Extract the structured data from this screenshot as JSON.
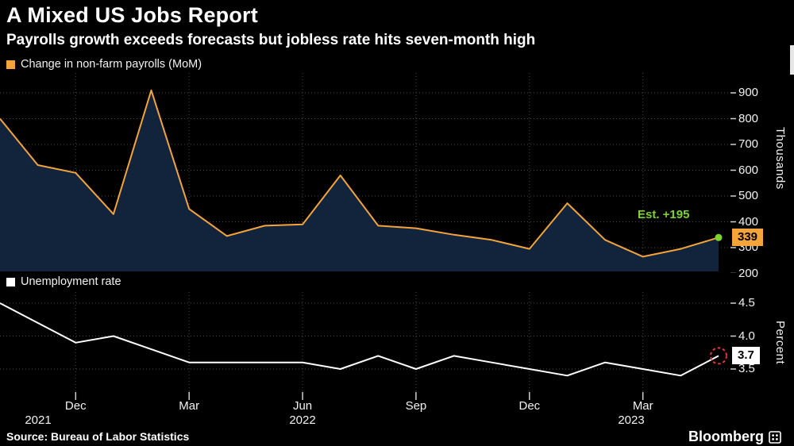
{
  "header": {
    "title": "A Mixed US Jobs Report",
    "subtitle": "Payrolls growth exceeds forecasts but jobless rate hits seven-month high"
  },
  "colors": {
    "background": "#000000",
    "accent_orange": "#f3a43b",
    "area_fill": "#12243c",
    "est_green": "#7dd32f",
    "alert_red": "#e13a42",
    "grid_gray": "#4a4a4a",
    "tick_gray": "#cfcfcf",
    "line_white": "#ffffff"
  },
  "chart_data": [
    {
      "type": "area",
      "name": "payrolls",
      "title": "Change in non-farm payrolls (MoM)",
      "unit_label": "Thousands",
      "legend_position": "top-left",
      "grid": true,
      "x": [
        "Oct 2021",
        "Nov 2021",
        "Dec 2021",
        "Jan 2022",
        "Feb 2022",
        "Mar 2022",
        "Apr 2022",
        "May 2022",
        "Jun 2022",
        "Jul 2022",
        "Aug 2022",
        "Sep 2022",
        "Oct 2022",
        "Nov 2022",
        "Dec 2022",
        "Jan 2023",
        "Feb 2023",
        "Mar 2023",
        "Apr 2023",
        "May 2023"
      ],
      "values": [
        800,
        620,
        590,
        430,
        910,
        450,
        345,
        385,
        390,
        580,
        385,
        375,
        350,
        330,
        295,
        472,
        330,
        265,
        295,
        339
      ],
      "yticks": [
        200,
        300,
        400,
        500,
        600,
        700,
        800,
        900
      ],
      "ytick_labels": [
        "200",
        "300",
        "400",
        "500",
        "600",
        "700",
        "800",
        "900"
      ],
      "ylim": [
        208,
        950
      ],
      "annotation": "Est. +195",
      "last_value": 339,
      "last_value_label": "339",
      "last_point_marker": "green-dot"
    },
    {
      "type": "line",
      "name": "unemployment",
      "title": "Unemployment rate",
      "unit_label": "Percent",
      "legend_position": "top-left",
      "grid": true,
      "x": [
        "Oct 2021",
        "Nov 2021",
        "Dec 2021",
        "Jan 2022",
        "Feb 2022",
        "Mar 2022",
        "Apr 2022",
        "May 2022",
        "Jun 2022",
        "Jul 2022",
        "Aug 2022",
        "Sep 2022",
        "Oct 2022",
        "Nov 2022",
        "Dec 2022",
        "Jan 2023",
        "Feb 2023",
        "Mar 2023",
        "Apr 2023",
        "May 2023"
      ],
      "values": [
        4.5,
        4.2,
        3.9,
        4.0,
        3.8,
        3.6,
        3.6,
        3.6,
        3.6,
        3.5,
        3.7,
        3.5,
        3.7,
        3.6,
        3.5,
        3.4,
        3.6,
        3.5,
        3.4,
        3.7
      ],
      "yticks": [
        3.5,
        4.0,
        4.5
      ],
      "ytick_labels": [
        "3.5",
        "4.0",
        "4.5"
      ],
      "ylim": [
        3.33,
        4.67
      ],
      "last_value": 3.7,
      "last_value_label": "3.7",
      "last_point_marker": "red-dashed-circle"
    }
  ],
  "x_axis": {
    "tick_labels": [
      "Dec",
      "Mar",
      "Jun",
      "Sep",
      "Dec",
      "Mar"
    ],
    "tick_month_indices": [
      2,
      5,
      8,
      11,
      14,
      17
    ],
    "year_labels": [
      "2021",
      "2022",
      "2023"
    ]
  },
  "footer": {
    "source": "Source: Bureau of Labor Statistics",
    "brand": "Bloomberg"
  }
}
